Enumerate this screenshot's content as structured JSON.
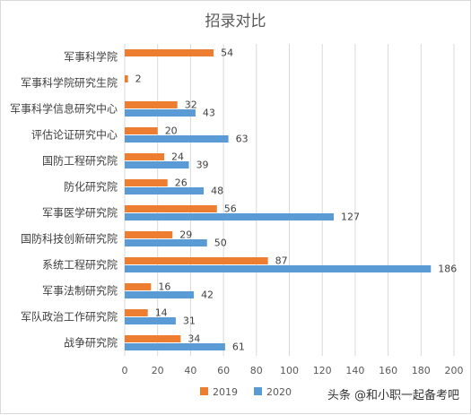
{
  "chart_data": {
    "type": "bar",
    "orientation": "horizontal",
    "title": "招录对比",
    "categories": [
      "军事科学院",
      "军事科学院研究生院",
      "军事科学信息研究中心",
      "评估论证研究中心",
      "国防工程研究院",
      "防化研究院",
      "军事医学研究院",
      "国防科技创新研究院",
      "系统工程研究院",
      "军事法制研究院",
      "军队政治工作研究院",
      "战争研究院"
    ],
    "series": [
      {
        "name": "2019",
        "color": "#ed7d31",
        "values": [
          54,
          2,
          32,
          20,
          24,
          26,
          56,
          29,
          87,
          16,
          14,
          34
        ]
      },
      {
        "name": "2020",
        "color": "#5b9bd5",
        "values": [
          null,
          null,
          43,
          63,
          39,
          48,
          127,
          50,
          186,
          42,
          31,
          61
        ]
      }
    ],
    "xlim": [
      0,
      200
    ],
    "xticks": [
      0,
      20,
      40,
      60,
      80,
      100,
      120,
      140,
      160,
      180,
      200
    ],
    "grid": true,
    "legend": "bottom",
    "data_labels": true
  },
  "watermark": "头条 @和小职一起备考吧"
}
